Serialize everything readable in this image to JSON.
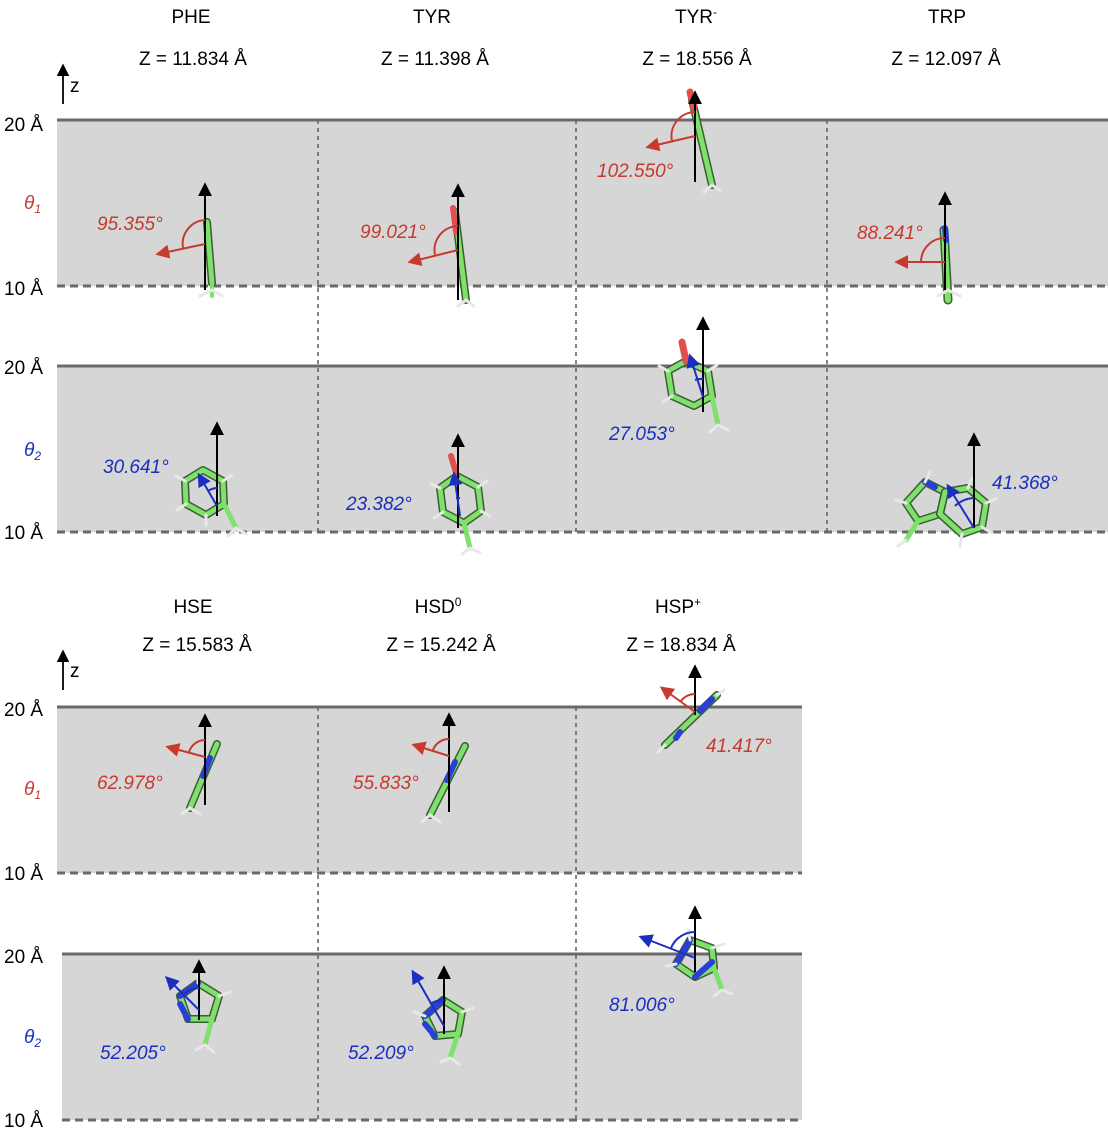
{
  "axis": {
    "z_label": "z",
    "upper_tick": "20 Å",
    "lower_tick": "10 Å"
  },
  "rows": {
    "theta1": {
      "label": "θ",
      "sub": "1",
      "color": "#c73a2e"
    },
    "theta2": {
      "label": "θ",
      "sub": "2",
      "color": "#1a2fc0"
    }
  },
  "panels": [
    {
      "name": "PHE",
      "sup": "",
      "z": "Z = 11.834 Å",
      "theta1": "95.355°",
      "theta2": "30.641°"
    },
    {
      "name": "TYR",
      "sup": "",
      "z": "Z = 11.398 Å",
      "theta1": "99.021°",
      "theta2": "23.382°"
    },
    {
      "name": "TYR",
      "sup": "-",
      "z": "Z = 18.556 Å",
      "theta1": "102.550°",
      "theta2": "27.053°"
    },
    {
      "name": "TRP",
      "sup": "",
      "z": "Z = 12.097 Å",
      "theta1": "88.241°",
      "theta2": "41.368°"
    },
    {
      "name": "HSE",
      "sup": "",
      "z": "Z = 15.583 Å",
      "theta1": "62.978°",
      "theta2": "52.205°"
    },
    {
      "name": "HSD",
      "sup": "0",
      "z": "Z = 15.242 Å",
      "theta1": "55.833°",
      "theta2": "52.209°"
    },
    {
      "name": "HSP",
      "sup": "+",
      "z": "Z = 18.834 Å",
      "theta1": "41.417°",
      "theta2": "81.006°"
    }
  ],
  "colors": {
    "membrane": "#d6d6d6",
    "boundary": "#6a6a6a",
    "carbon": "#7fe06e",
    "nitrogen": "#2b3fd6",
    "oxygen": "#e05050"
  }
}
